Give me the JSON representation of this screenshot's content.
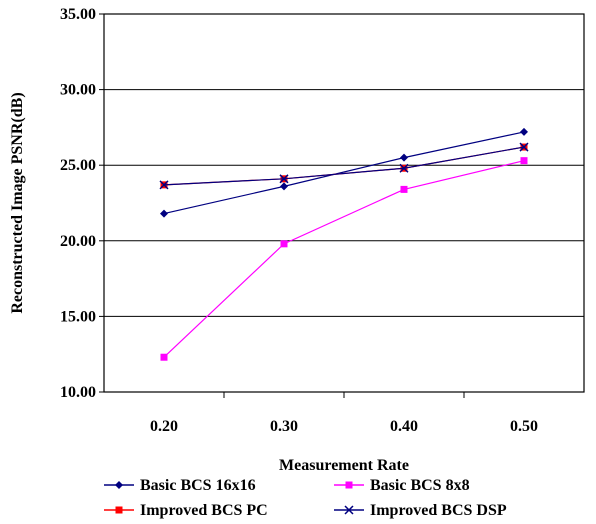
{
  "chart_data": {
    "type": "line",
    "xlabel": "Measurement Rate",
    "ylabel": "Reconstructed Image PSNR(dB)",
    "categories": [
      "0.20",
      "0.30",
      "0.40",
      "0.50"
    ],
    "ylim": [
      10,
      35
    ],
    "yticks": [
      "10.00",
      "15.00",
      "20.00",
      "25.00",
      "30.00",
      "35.00"
    ],
    "grid": "horizontal",
    "legend_position": "bottom",
    "series": [
      {
        "name": "Basic BCS 16x16",
        "values": [
          21.8,
          23.6,
          25.5,
          27.2
        ],
        "color": "#000080",
        "marker": "diamond"
      },
      {
        "name": "Basic BCS 8x8",
        "values": [
          12.3,
          19.8,
          23.4,
          25.3
        ],
        "color": "#FF00FF",
        "marker": "square"
      },
      {
        "name": "Improved BCS PC",
        "values": [
          23.7,
          24.1,
          24.8,
          26.2
        ],
        "color": "#FF0000",
        "marker": "square"
      },
      {
        "name": "Improved BCS DSP",
        "values": [
          23.7,
          24.1,
          24.8,
          26.2
        ],
        "color": "#000080",
        "marker": "x"
      }
    ]
  }
}
